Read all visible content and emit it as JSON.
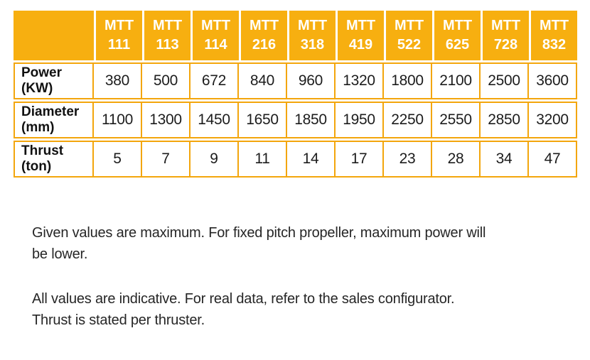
{
  "colors": {
    "header_bg": "#F7AF10",
    "grid_border": "#F3A60C",
    "header_text": "#FFFFFF",
    "body_text": "#1C1C1C"
  },
  "table": {
    "models": [
      "MTT 111",
      "MTT 113",
      "MTT 114",
      "MTT 216",
      "MTT 318",
      "MTT 419",
      "MTT 522",
      "MTT 625",
      "MTT 728",
      "MTT 832"
    ],
    "rows": [
      {
        "label": "Power",
        "unit": "(KW)",
        "values": [
          "380",
          "500",
          "672",
          "840",
          "960",
          "1320",
          "1800",
          "2100",
          "2500",
          "3600"
        ]
      },
      {
        "label": "Diameter",
        "unit": "(mm)",
        "values": [
          "1100",
          "1300",
          "1450",
          "1650",
          "1850",
          "1950",
          "2250",
          "2550",
          "2850",
          "3200"
        ]
      },
      {
        "label": "Thrust",
        "unit": "(ton)",
        "values": [
          "5",
          "7",
          "9",
          "11",
          "14",
          "17",
          "23",
          "28",
          "34",
          "47"
        ]
      }
    ]
  },
  "notes": [
    {
      "lines": [
        "Given values are maximum. For fixed pitch propeller, maximum power will",
        "be lower."
      ]
    },
    {
      "lines": [
        "All values are indicative. For real data, refer to the sales configurator.",
        "Thrust is stated per thruster."
      ]
    }
  ]
}
